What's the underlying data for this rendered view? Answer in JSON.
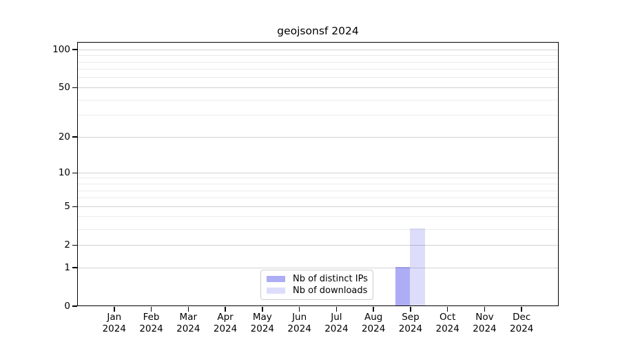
{
  "chart_data": {
    "type": "bar",
    "title": "geojsonsf 2024",
    "categories": [
      "Jan",
      "Feb",
      "Mar",
      "Apr",
      "May",
      "Jun",
      "Jul",
      "Aug",
      "Sep",
      "Oct",
      "Nov",
      "Dec"
    ],
    "x_year_label": "2024",
    "series": [
      {
        "name": "Nb of distinct IPs",
        "color": "rgba(20,20,230,0.35)",
        "values": [
          0,
          0,
          0,
          0,
          0,
          0,
          0,
          0,
          1,
          0,
          0,
          0
        ]
      },
      {
        "name": "Nb of downloads",
        "color": "rgba(20,20,230,0.145)",
        "values": [
          0,
          0,
          0,
          0,
          0,
          0,
          0,
          0,
          3,
          0,
          0,
          0
        ]
      }
    ],
    "y_axis": {
      "scale": "log1p",
      "major_ticks": [
        0,
        1,
        2,
        5,
        10,
        20,
        50,
        100
      ],
      "minor_gridlines": [
        3,
        4,
        6,
        7,
        8,
        9,
        30,
        40,
        60,
        70,
        80,
        90
      ],
      "ylim": [
        0,
        115
      ]
    },
    "xlabel": "",
    "ylabel": "",
    "grid": true,
    "legend_position": "lower center"
  },
  "colors": {
    "bar_distinct_ips": "rgba(20,20,230,0.35)",
    "bar_downloads": "rgba(20,20,230,0.145)",
    "major_grid": "#d2d2d2",
    "minor_grid": "#ececec",
    "axis": "#000000",
    "background": "#ffffff"
  }
}
